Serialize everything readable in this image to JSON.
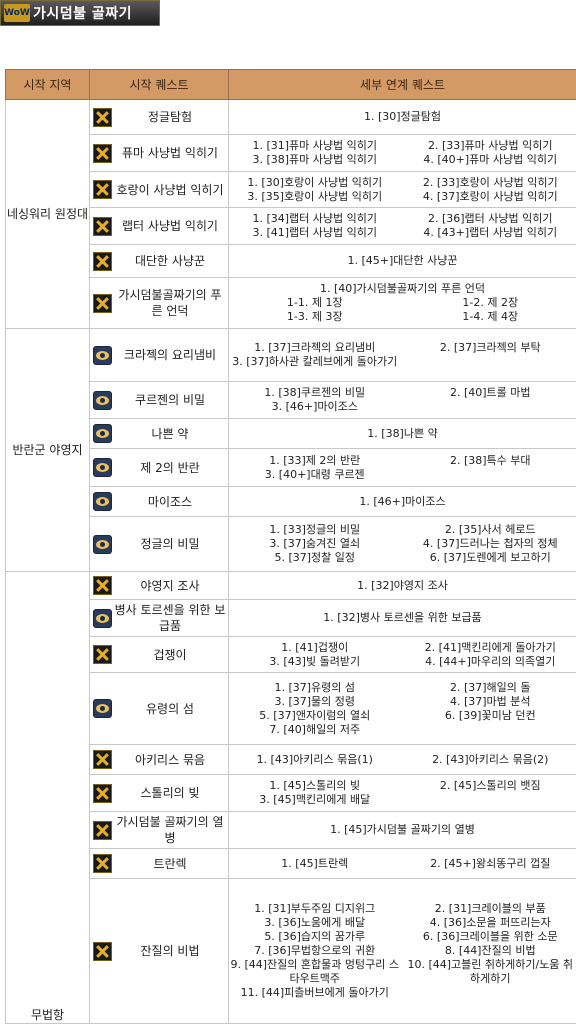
{
  "banner": {
    "logo": "WoW",
    "title": "가시덤불 골짜기"
  },
  "headers": {
    "region": "시작 지역",
    "start": "시작 퀘스트",
    "chain": "세부 연계 퀘스트"
  },
  "regions": [
    {
      "name": "네싱워리 원정대",
      "quests": [
        {
          "start": "정글탐험",
          "faction": "alliance",
          "h": 35,
          "chain": [
            "1. [30]정글탐험"
          ]
        },
        {
          "start": "퓨마 사냥법 익히기",
          "faction": "alliance",
          "h": 37,
          "chain": [
            "1. [31]퓨마 사냥법 익히기",
            "2. [33]퓨마 사냥법 익히기",
            "3. [38]퓨마 사냥법 익히기",
            "4. [40+]퓨마 사냥법 익히기"
          ]
        },
        {
          "start": "호랑이 사냥법 익히기",
          "faction": "alliance",
          "h": 36,
          "chain": [
            "1. [30]호랑이 사냥법 익히기",
            "2. [33]호랑이 사냥법 익히기",
            "3. [35]호랑이 사냥법 익히기",
            "4. [37]호랑이 사냥법 익히기"
          ]
        },
        {
          "start": "랩터 사냥법 익히기",
          "faction": "alliance",
          "h": 37,
          "chain": [
            "1. [34]랩터 사냥법 익히기",
            "2. [36]랩터 사냥법 익히기",
            "3. [41]랩터 사냥법 익히기",
            "4. [43+]랩터 사냥법 익히기"
          ]
        },
        {
          "start": "대단한 사냥꾼",
          "faction": "alliance",
          "h": 33,
          "chain": [
            "1. [45+]대단한 사냥꾼"
          ]
        },
        {
          "start": "가시덤불골짜기의 푸른 언덕",
          "faction": "alliance",
          "h": 51,
          "chain": [
            "1. [40]가시덤불골짜기의 푸른 언덕"
          ],
          "subs": [
            "1-1. 제 1장",
            "1-2. 제 2장",
            "1-3. 제 3장",
            "1-4. 제 4장"
          ]
        }
      ]
    },
    {
      "name": "반란군 야영지",
      "quests": [
        {
          "start": "크라젝의 요리냄비",
          "faction": "horde",
          "h": 53,
          "chain": [
            "1. [37]크라젝의 요리냄비",
            "2. [37]크라젝의 부탁",
            "3. [37]하사관 칼레브에게 돌아가기",
            ""
          ]
        },
        {
          "start": "쿠르젠의 비밀",
          "faction": "horde",
          "h": 37,
          "chain": [
            "1. [38]쿠르젠의 비밀",
            "2. [40]트롤 마법",
            "3. [46+]마이조스",
            ""
          ]
        },
        {
          "start": "나쁜 약",
          "faction": "horde",
          "h": 30,
          "chain": [
            "1. [38]나쁜 약"
          ]
        },
        {
          "start": "제 2의 반란",
          "faction": "horde",
          "h": 38,
          "chain": [
            "1. [33]제 2의 반란",
            "2. [38]특수 부대",
            "3. [40+]대령 쿠르젠",
            ""
          ]
        },
        {
          "start": "마이조스",
          "faction": "horde",
          "h": 30,
          "chain": [
            "1. [46+]마이조스"
          ]
        },
        {
          "start": "정글의 비밀",
          "faction": "horde",
          "h": 55,
          "chain": [
            "1. [33]정글의 비밀",
            "2. [35]사서 헤로드",
            "3. [37]숨겨진 열쇠",
            "4. [37]드러나는 첩자의 정체",
            "5. [37]정찰 일정",
            "6. [37]도렌에게 보고하기"
          ]
        }
      ]
    },
    {
      "name": "무법항",
      "quests": [
        {
          "start": "야영지 조사",
          "faction": "alliance",
          "h": 28,
          "chain": [
            "1. [32]야영지 조사"
          ]
        },
        {
          "start": "병사 토르센을 위한 보급품",
          "faction": "horde",
          "h": 37,
          "chain": [
            "1. [32]병사 토르센을 위한 보급품"
          ]
        },
        {
          "start": "겁쟁이",
          "faction": "alliance",
          "h": 36,
          "chain": [
            "1. [41]겁쟁이",
            "2. [41]맥킨리에게 돌아가기",
            "3. [43]빚 돌려받기",
            "4. [44+]마우리의 의족열기"
          ]
        },
        {
          "start": "유령의 섬",
          "faction": "horde",
          "h": 72,
          "chain": [
            "1. [37]유령의 섬",
            "2. [37]해일의 돌",
            "3. [37]물의 정령",
            "4. [37]마법 분석",
            "5. [37]앤자이럼의 열쇠",
            "6. [39]꽃미남 던컨",
            "7. [40]해일의 저주",
            ""
          ]
        },
        {
          "start": "아키리스 묶음",
          "faction": "alliance",
          "h": 30,
          "chain": [
            "1. [43]아키리스 묶음(1)",
            "2. [43]아키리스 묶음(2)"
          ]
        },
        {
          "start": "스톨리의 빚",
          "faction": "alliance",
          "h": 37,
          "chain": [
            "1. [45]스톨리의 빚",
            "2. [45]스톨리의 뱃짐",
            "3. [45]맥킨리에게 배달",
            ""
          ]
        },
        {
          "start": "가시덤불 골짜기의 열병",
          "faction": "alliance",
          "h": 37,
          "chain": [
            "1. [45]가시덤불 골짜기의 열병"
          ]
        },
        {
          "start": "트란렉",
          "faction": "alliance",
          "h": 30,
          "chain": [
            "1. [45]트란렉",
            "2. [45+]왕쇠똥구리 껍질"
          ]
        },
        {
          "start": "잔질의 비법",
          "faction": "alliance",
          "h": 145,
          "chain": [
            "1. [31]부두주임 디지위그",
            "2. [31]크레이블의 부품",
            "3. [36]노움에게 배달",
            "4. [36]소문을 퍼뜨리는자",
            "5. [36]습지의 꿈가루",
            "6. [36]크레이블을 위한 소문",
            "7. [36]무법항으로의 귀환",
            "8. [44]잔질의 비법",
            "9. [44]잔질의 혼합물과 멍텅구리 스타우트맥주",
            "10. [44]고블린 취하게하기/노움 취하게하기",
            "11. [44]피츨버브에게 돌아가기",
            ""
          ]
        }
      ]
    }
  ]
}
